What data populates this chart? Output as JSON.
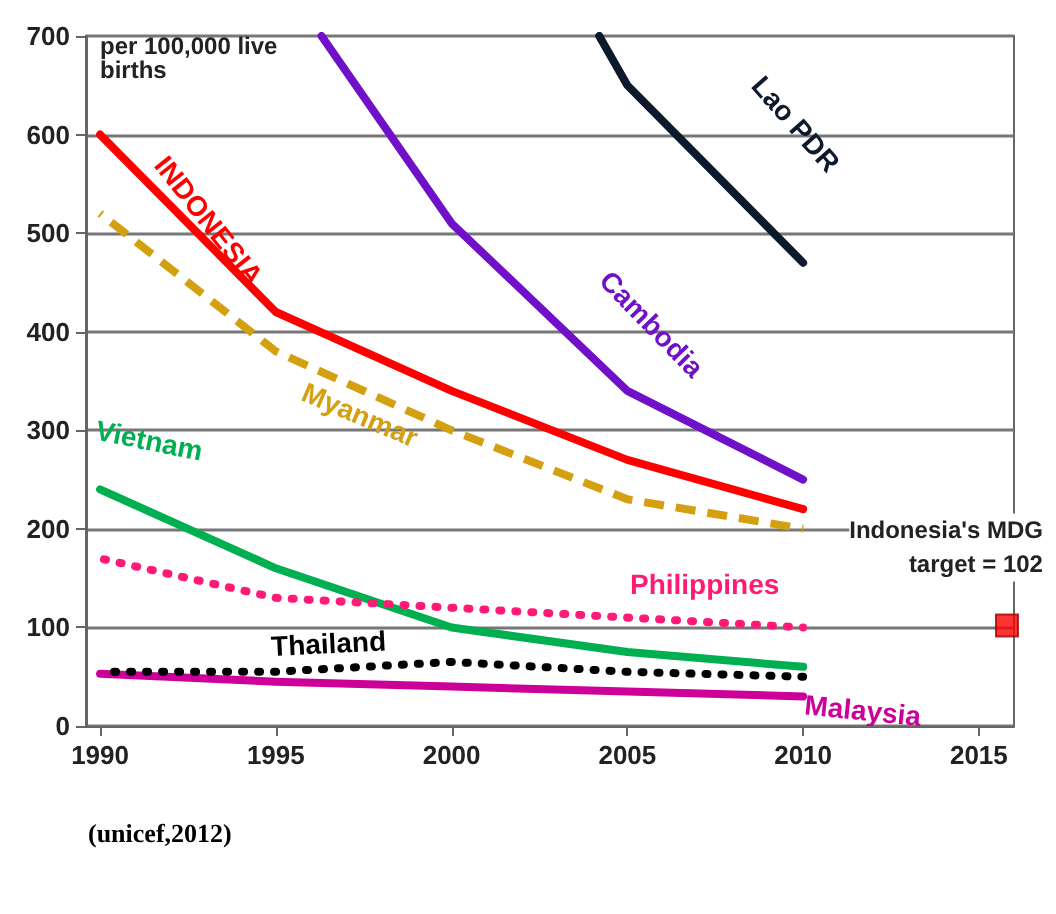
{
  "chart_data": {
    "type": "line",
    "ylabel": "per 100,000 live births",
    "xlim": [
      1989.6,
      2016
    ],
    "xticks": [
      1990,
      1995,
      2000,
      2005,
      2010,
      2015
    ],
    "ylim": [
      0,
      700
    ],
    "yticks": [
      0,
      100,
      200,
      300,
      400,
      500,
      600,
      700
    ],
    "grid": "y",
    "marker": "none",
    "series": [
      {
        "name": "Lao PDR",
        "color": "#0d1a2b",
        "line_style": "solid",
        "x": [
          2004.2,
          2005,
          2010
        ],
        "values": [
          700,
          650,
          470
        ]
      },
      {
        "name": "Cambodia",
        "color": "#7010c8",
        "line_style": "solid",
        "x": [
          1996.3,
          2000,
          2005,
          2010
        ],
        "values": [
          700,
          510,
          340,
          250
        ]
      },
      {
        "name": "INDONESIA",
        "color": "#ff0000",
        "line_style": "solid",
        "x": [
          1990,
          1995,
          2000,
          2005,
          2010
        ],
        "values": [
          600,
          420,
          340,
          270,
          220
        ]
      },
      {
        "name": "Myanmar",
        "color": "#d4a010",
        "line_style": "dashed",
        "x": [
          1990,
          1995,
          2000,
          2005,
          2010
        ],
        "values": [
          520,
          380,
          300,
          230,
          200
        ]
      },
      {
        "name": "Vietnam",
        "color": "#00b050",
        "line_style": "solid",
        "x": [
          1990,
          1995,
          2000,
          2005,
          2010
        ],
        "values": [
          240,
          160,
          100,
          75,
          60
        ]
      },
      {
        "name": "Philippines",
        "color": "#ff1a75",
        "line_style": "dotted",
        "x": [
          1990,
          1995,
          2000,
          2005,
          2010
        ],
        "values": [
          170,
          130,
          120,
          110,
          100
        ]
      },
      {
        "name": "Thailand",
        "color": "#000000",
        "line_style": "dotted",
        "x": [
          1990,
          1995,
          2000,
          2005,
          2010
        ],
        "values": [
          55,
          55,
          65,
          55,
          50
        ]
      },
      {
        "name": "Malaysia",
        "color": "#cc0099",
        "line_style": "solid",
        "x": [
          1990,
          1995,
          2000,
          2005,
          2010
        ],
        "values": [
          53,
          45,
          40,
          35,
          30
        ]
      },
      {
        "type": "scatter",
        "marker": "square",
        "color": "#ff0000",
        "x": [
          2015.8
        ],
        "values": [
          102
        ]
      }
    ],
    "annotations": [
      {
        "text": "Indonesia's MDG\ntarget = 102",
        "x": 2015.8,
        "y": 102
      },
      "(unicef,2012)"
    ]
  }
}
